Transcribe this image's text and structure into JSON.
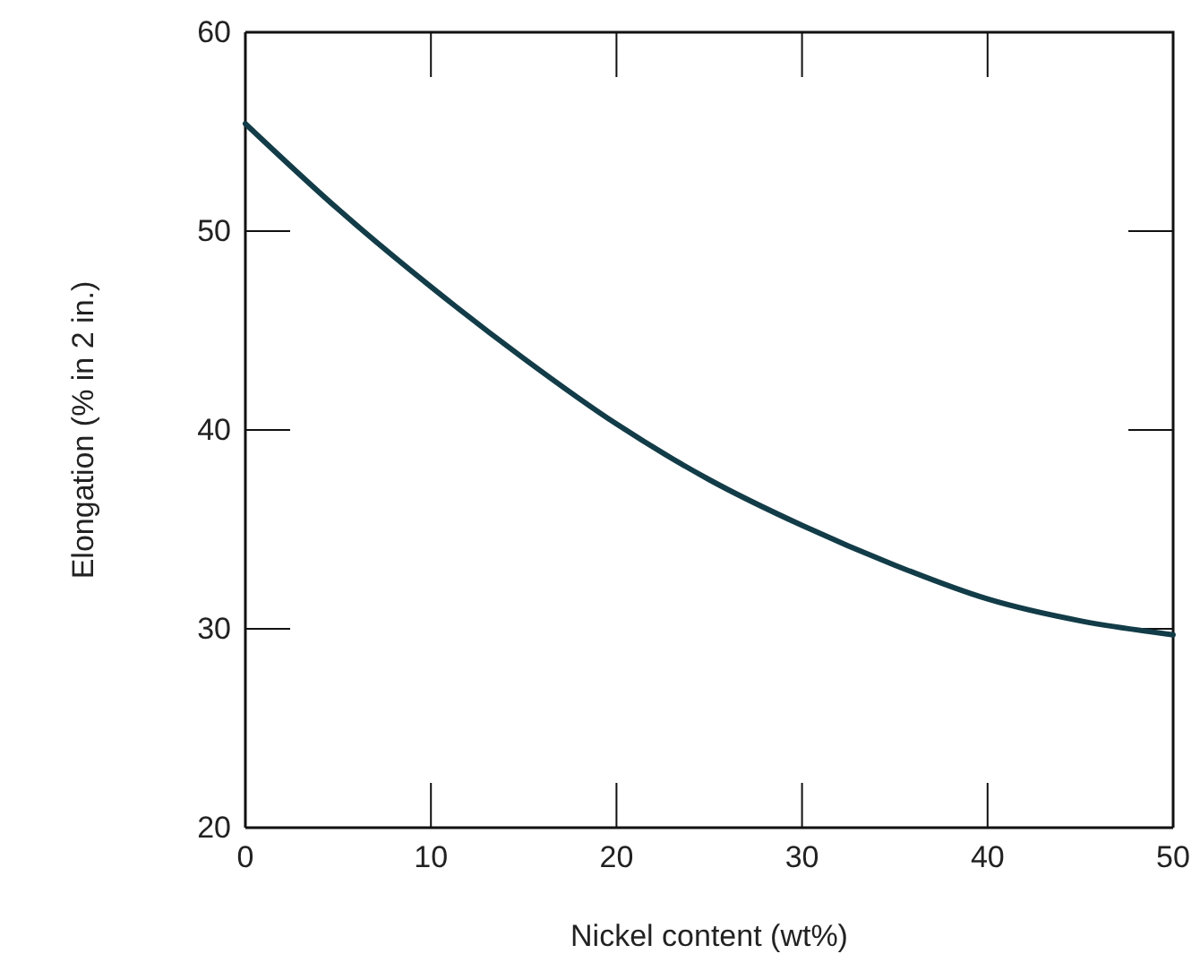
{
  "chart_data": {
    "type": "line",
    "xlabel": "Nickel content (wt%)",
    "ylabel": "Elongation (% in 2 in.)",
    "x": [
      0,
      5,
      10,
      15,
      20,
      25,
      30,
      35,
      40,
      45,
      50
    ],
    "series": [
      {
        "color": "#123c48",
        "values": [
          55.4,
          51.1,
          47.2,
          43.6,
          40.3,
          37.5,
          35.2,
          33.2,
          31.5,
          30.4,
          29.7
        ]
      }
    ],
    "xlim": [
      0,
      50
    ],
    "xticks": [
      0,
      10,
      20,
      30,
      40,
      50
    ],
    "ylim": [
      20,
      60
    ],
    "yticks": [
      20,
      30,
      40,
      50,
      60
    ],
    "grid": false,
    "marker": "none",
    "line_style": "solid"
  }
}
